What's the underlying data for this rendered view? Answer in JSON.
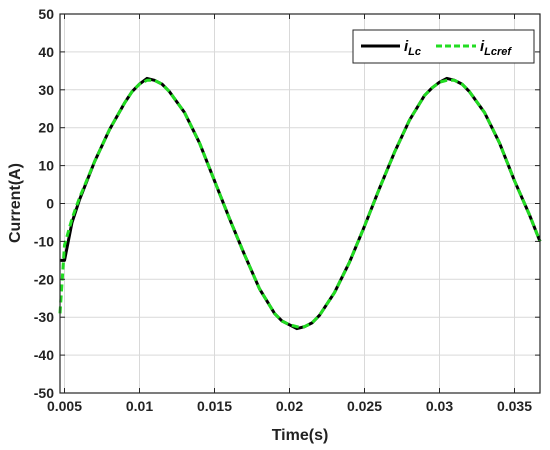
{
  "chart_data": {
    "type": "line",
    "title": "",
    "xlabel": "Time(s)",
    "ylabel": "Current(A)",
    "xlim": [
      0.0047,
      0.0367
    ],
    "ylim": [
      -50,
      50
    ],
    "xticks": [
      0.005,
      0.01,
      0.015,
      0.02,
      0.025,
      0.03,
      0.035
    ],
    "xtick_labels": [
      "0.005",
      "0.01",
      "0.015",
      "0.02",
      "0.025",
      "0.03",
      "0.035"
    ],
    "yticks": [
      -50,
      -40,
      -30,
      -20,
      -10,
      0,
      10,
      20,
      30,
      40,
      50
    ],
    "ytick_labels": [
      "-50",
      "-40",
      "-30",
      "-20",
      "-10",
      "0",
      "10",
      "20",
      "30",
      "40",
      "50"
    ],
    "grid": true,
    "legend_position": "top-right",
    "series": [
      {
        "name": "i_Lc",
        "legend_main": "i",
        "legend_sub": "Lc",
        "color": "#000000",
        "style": "solid",
        "x": [
          0.0047,
          0.005,
          0.0055,
          0.006,
          0.007,
          0.008,
          0.009,
          0.0095,
          0.01,
          0.0105,
          0.011,
          0.0115,
          0.012,
          0.013,
          0.014,
          0.015,
          0.016,
          0.017,
          0.018,
          0.019,
          0.0195,
          0.02,
          0.0205,
          0.021,
          0.0215,
          0.022,
          0.023,
          0.024,
          0.025,
          0.026,
          0.027,
          0.028,
          0.029,
          0.0295,
          0.03,
          0.0305,
          0.031,
          0.0315,
          0.032,
          0.033,
          0.034,
          0.035,
          0.036,
          0.0367
        ],
        "y": [
          -15,
          -15,
          -5,
          1,
          11,
          19.5,
          26.5,
          29.5,
          31.5,
          33,
          32.5,
          31.5,
          29.5,
          24,
          16,
          6,
          -4,
          -13.5,
          -22.5,
          -29,
          -31,
          -32,
          -33,
          -32.5,
          -31.5,
          -29.5,
          -23.5,
          -15.5,
          -6,
          4,
          13.5,
          22,
          28.5,
          30.5,
          32,
          33,
          32.5,
          31.5,
          29.5,
          24,
          16,
          6,
          -3,
          -10
        ]
      },
      {
        "name": "i_Lcref",
        "legend_main": "i",
        "legend_sub": "Lcref",
        "color": "#22dd22",
        "style": "dashed",
        "x": [
          0.0047,
          0.0049,
          0.005,
          0.0055,
          0.006,
          0.007,
          0.008,
          0.009,
          0.0095,
          0.01,
          0.0105,
          0.011,
          0.0115,
          0.012,
          0.013,
          0.014,
          0.015,
          0.016,
          0.017,
          0.018,
          0.019,
          0.0195,
          0.02,
          0.0205,
          0.021,
          0.0215,
          0.022,
          0.023,
          0.024,
          0.025,
          0.026,
          0.027,
          0.028,
          0.029,
          0.0295,
          0.03,
          0.0305,
          0.031,
          0.0315,
          0.032,
          0.033,
          0.034,
          0.035,
          0.036,
          0.0367
        ],
        "y": [
          -29,
          -17,
          -11,
          -4,
          1.5,
          11,
          19.5,
          26.5,
          29.5,
          31.5,
          32.5,
          32.5,
          31.5,
          29.5,
          24,
          16,
          6,
          -4,
          -13.5,
          -22.5,
          -29,
          -31,
          -32,
          -32.5,
          -32.5,
          -31.5,
          -29.5,
          -23.5,
          -15.5,
          -6,
          4,
          13.5,
          22,
          28.5,
          30.5,
          32,
          32.5,
          32.5,
          31.5,
          29.5,
          24,
          16,
          6,
          -3,
          -10
        ]
      }
    ]
  }
}
